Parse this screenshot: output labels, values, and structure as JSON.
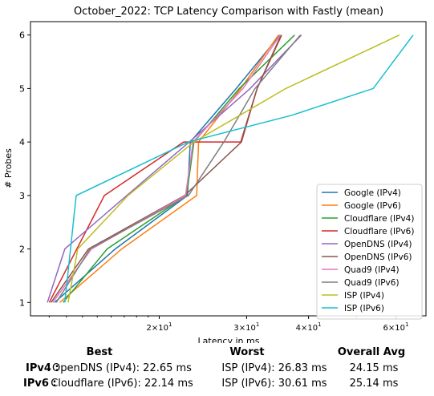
{
  "chart_data": {
    "type": "line",
    "title": "October_2022: TCP Latency Comparison with Fastly (mean)",
    "xlabel": "Latency in ms",
    "ylabel": "# Probes",
    "xscale": "log",
    "xlim": [
      11.0,
      69.0
    ],
    "ylim": [
      0.75,
      6.25
    ],
    "x_ticks": [
      {
        "value": 20,
        "label_base": "2",
        "label_exp": "1",
        "label_mult": "×10"
      },
      {
        "value": 30,
        "label_base": "3",
        "label_exp": "1",
        "label_mult": "×10"
      },
      {
        "value": 40,
        "label_base": "4",
        "label_exp": "1",
        "label_mult": "×10"
      },
      {
        "value": 60,
        "label_base": "6",
        "label_exp": "1",
        "label_mult": "×10"
      }
    ],
    "y_ticks": [
      1,
      2,
      3,
      4,
      5,
      6
    ],
    "grid": false,
    "legend": "lower-right",
    "series": [
      {
        "name": "Google (IPv4)",
        "color": "#1f77b4",
        "points": [
          [
            12.3,
            1
          ],
          [
            16.3,
            2
          ],
          [
            22.8,
            3
          ],
          [
            23.1,
            4
          ],
          [
            28.6,
            5
          ],
          [
            35.0,
            6
          ]
        ]
      },
      {
        "name": "Google (IPv6)",
        "color": "#ff7f0e",
        "points": [
          [
            12.6,
            1
          ],
          [
            16.8,
            2
          ],
          [
            23.8,
            3
          ],
          [
            24.0,
            4
          ],
          [
            29.2,
            5
          ],
          [
            34.8,
            6
          ]
        ]
      },
      {
        "name": "Cloudflare (IPv4)",
        "color": "#2ca02c",
        "points": [
          [
            12.8,
            1
          ],
          [
            15.7,
            2
          ],
          [
            22.7,
            3
          ],
          [
            23.5,
            4
          ],
          [
            29.0,
            5
          ],
          [
            37.5,
            6
          ]
        ]
      },
      {
        "name": "Cloudflare (IPv6)",
        "color": "#d62728",
        "points": [
          [
            12.0,
            1
          ],
          [
            15.5,
            3
          ],
          [
            22.4,
            4
          ],
          [
            29.2,
            4
          ],
          [
            31.5,
            5
          ],
          [
            35.3,
            6
          ]
        ]
      },
      {
        "name": "OpenDNS (IPv4)",
        "color": "#9467bd",
        "points": [
          [
            11.9,
            1
          ],
          [
            12.9,
            2
          ],
          [
            17.2,
            3
          ],
          [
            23.0,
            4
          ],
          [
            30.5,
            5
          ],
          [
            38.7,
            6
          ]
        ]
      },
      {
        "name": "OpenDNS (IPv6)",
        "color": "#8c564b",
        "points": [
          [
            12.1,
            1
          ],
          [
            14.4,
            2
          ],
          [
            22.5,
            3
          ],
          [
            29.3,
            4
          ],
          [
            31.5,
            5
          ],
          [
            35.2,
            6
          ]
        ]
      },
      {
        "name": "Quad9 (IPv4)",
        "color": "#e377c2",
        "points": [
          [
            12.2,
            1
          ],
          [
            14.6,
            2
          ],
          [
            22.6,
            3
          ],
          [
            23.4,
            4
          ],
          [
            29.5,
            5
          ],
          [
            35.1,
            6
          ]
        ]
      },
      {
        "name": "Quad9 (IPv6)",
        "color": "#7f7f7f",
        "points": [
          [
            12.4,
            1
          ],
          [
            14.5,
            2
          ],
          [
            22.9,
            3
          ],
          [
            27.0,
            4
          ],
          [
            31.2,
            5
          ],
          [
            38.5,
            6
          ]
        ]
      },
      {
        "name": "ISP (IPv4)",
        "color": "#bcbd22",
        "points": [
          [
            13.1,
            1
          ],
          [
            13.7,
            2
          ],
          [
            17.3,
            3
          ],
          [
            23.5,
            4
          ],
          [
            36.0,
            5
          ],
          [
            61.0,
            6
          ]
        ]
      },
      {
        "name": "ISP (IPv6)",
        "color": "#17becf",
        "points": [
          [
            12.9,
            1
          ],
          [
            13.6,
            3
          ],
          [
            22.9,
            4
          ],
          [
            37.0,
            4.5
          ],
          [
            54.0,
            5
          ],
          [
            65.0,
            6
          ]
        ]
      }
    ]
  },
  "summary": {
    "headers": {
      "best": "Best",
      "worst": "Worst",
      "overall": "Overall Avg"
    },
    "rows": [
      {
        "label": "IPv4 :",
        "best": "OpenDNS (IPv4): 22.65 ms",
        "worst": "ISP (IPv4): 26.83 ms",
        "overall": "24.15 ms"
      },
      {
        "label": "IPv6 :",
        "best": "Cloudflare (IPv6): 22.14 ms",
        "worst": "ISP (IPv6): 30.61 ms",
        "overall": "25.14 ms"
      }
    ]
  }
}
